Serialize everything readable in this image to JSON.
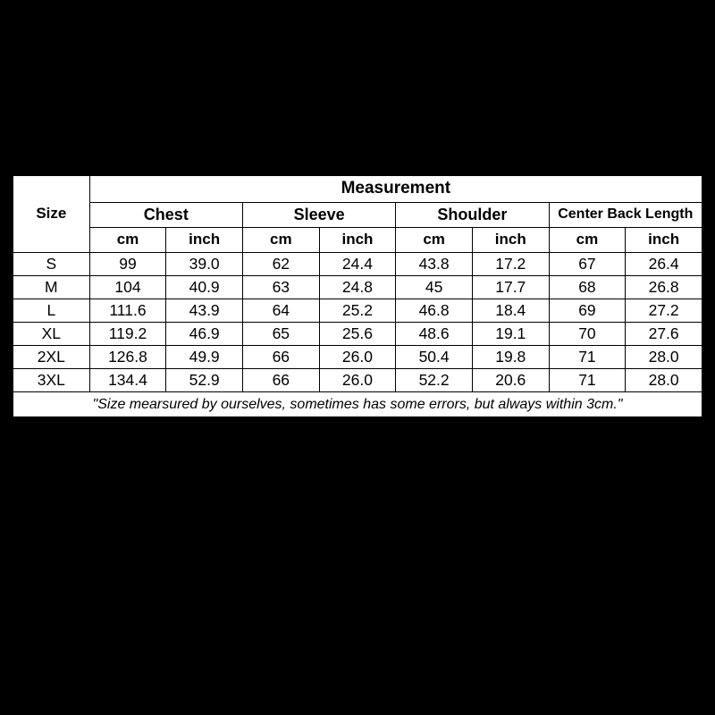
{
  "table": {
    "type": "table",
    "background_color": "#ffffff",
    "border_color": "#000000",
    "page_background": "#000000",
    "header": {
      "size_label": "Size",
      "measurement_label": "Measurement",
      "groups": [
        "Chest",
        "Sleeve",
        "Shoulder",
        "Center Back Length"
      ],
      "unit_cm": "cm",
      "unit_inch": "inch"
    },
    "columns": [
      "size",
      "chest_cm",
      "chest_in",
      "sleeve_cm",
      "sleeve_in",
      "shoulder_cm",
      "shoulder_in",
      "cbl_cm",
      "cbl_in"
    ],
    "rows": [
      {
        "size": "S",
        "chest_cm": "99",
        "chest_in": "39.0",
        "sleeve_cm": "62",
        "sleeve_in": "24.4",
        "shoulder_cm": "43.8",
        "shoulder_in": "17.2",
        "cbl_cm": "67",
        "cbl_in": "26.4"
      },
      {
        "size": "M",
        "chest_cm": "104",
        "chest_in": "40.9",
        "sleeve_cm": "63",
        "sleeve_in": "24.8",
        "shoulder_cm": "45",
        "shoulder_in": "17.7",
        "cbl_cm": "68",
        "cbl_in": "26.8"
      },
      {
        "size": "L",
        "chest_cm": "111.6",
        "chest_in": "43.9",
        "sleeve_cm": "64",
        "sleeve_in": "25.2",
        "shoulder_cm": "46.8",
        "shoulder_in": "18.4",
        "cbl_cm": "69",
        "cbl_in": "27.2"
      },
      {
        "size": "XL",
        "chest_cm": "119.2",
        "chest_in": "46.9",
        "sleeve_cm": "65",
        "sleeve_in": "25.6",
        "shoulder_cm": "48.6",
        "shoulder_in": "19.1",
        "cbl_cm": "70",
        "cbl_in": "27.6"
      },
      {
        "size": "2XL",
        "chest_cm": "126.8",
        "chest_in": "49.9",
        "sleeve_cm": "66",
        "sleeve_in": "26.0",
        "shoulder_cm": "50.4",
        "shoulder_in": "19.8",
        "cbl_cm": "71",
        "cbl_in": "28.0"
      },
      {
        "size": "3XL",
        "chest_cm": "134.4",
        "chest_in": "52.9",
        "sleeve_cm": "66",
        "sleeve_in": "26.0",
        "shoulder_cm": "52.2",
        "shoulder_in": "20.6",
        "cbl_cm": "71",
        "cbl_in": "28.0"
      }
    ],
    "footnote": "\"Size mearsured by ourselves, sometimes has some errors, but always within 3cm.\""
  }
}
